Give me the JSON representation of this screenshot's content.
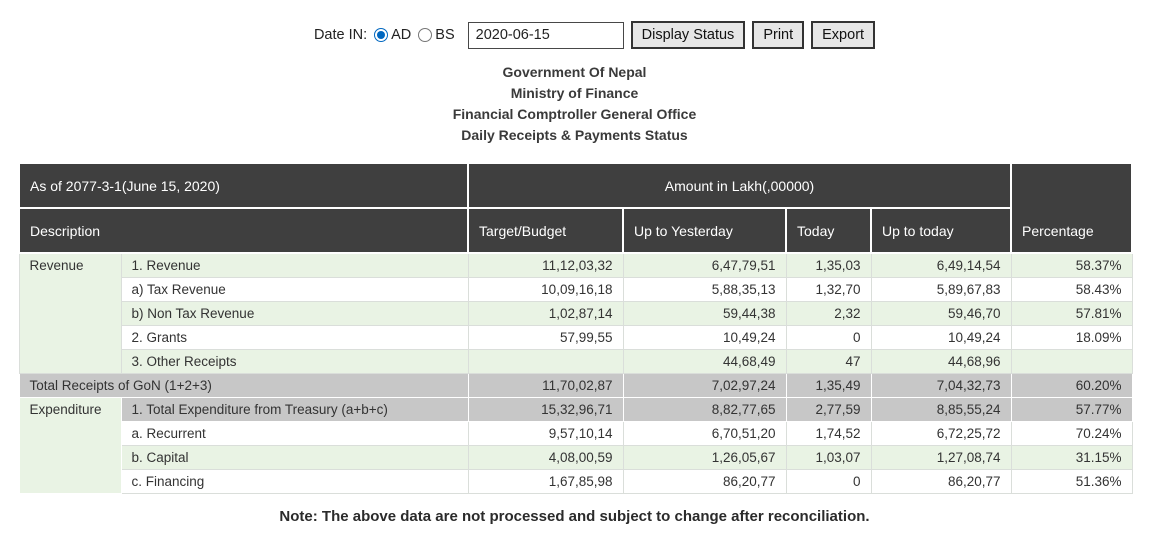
{
  "controls": {
    "date_in_label": "Date IN:",
    "radio_ad_label": "AD",
    "radio_bs_label": "BS",
    "radio_selected": "AD",
    "date_value": "2020-06-15",
    "display_status_label": "Display Status",
    "print_label": "Print",
    "export_label": "Export"
  },
  "titles": {
    "line1": "Government Of Nepal",
    "line2": "Ministry of Finance",
    "line3": "Financial Comptroller General Office",
    "line4": "Daily Receipts & Payments Status"
  },
  "table": {
    "header": {
      "as_of": "As of 2077-3-1(June 15, 2020)",
      "amount_unit": "Amount in Lakh(,00000)",
      "description": "Description",
      "target_budget": "Target/Budget",
      "up_to_yesterday": "Up to Yesterday",
      "today": "Today",
      "up_to_today": "Up to today",
      "percentage": "Percentage"
    },
    "rows": [
      {
        "category": "Revenue",
        "category_rowspan": 5,
        "description": "1. Revenue",
        "bg": "green",
        "values": [
          "11,12,03,32",
          "6,47,79,51",
          "1,35,03",
          "6,49,14,54",
          "58.37%"
        ]
      },
      {
        "description": "a) Tax Revenue",
        "bg": "white",
        "values": [
          "10,09,16,18",
          "5,88,35,13",
          "1,32,70",
          "5,89,67,83",
          "58.43%"
        ]
      },
      {
        "description": "b) Non Tax Revenue",
        "bg": "green",
        "values": [
          "1,02,87,14",
          "59,44,38",
          "2,32",
          "59,46,70",
          "57.81%"
        ]
      },
      {
        "description": "2. Grants",
        "bg": "white",
        "values": [
          "57,99,55",
          "10,49,24",
          "0",
          "10,49,24",
          "18.09%"
        ]
      },
      {
        "description": "3. Other Receipts",
        "bg": "green",
        "values": [
          "",
          "44,68,49",
          "47",
          "44,68,96",
          ""
        ]
      },
      {
        "description": "Total Receipts of GoN (1+2+3)",
        "bg": "gray",
        "full_width": true,
        "values": [
          "11,70,02,87",
          "7,02,97,24",
          "1,35,49",
          "7,04,32,73",
          "60.20%"
        ]
      },
      {
        "category": "Expenditure",
        "category_rowspan": 4,
        "description": "1. Total Expenditure from Treasury (a+b+c)",
        "bg": "gray",
        "values": [
          "15,32,96,71",
          "8,82,77,65",
          "2,77,59",
          "8,85,55,24",
          "57.77%"
        ]
      },
      {
        "description": "a. Recurrent",
        "bg": "white",
        "values": [
          "9,57,10,14",
          "6,70,51,20",
          "1,74,52",
          "6,72,25,72",
          "70.24%"
        ]
      },
      {
        "description": "b. Capital",
        "bg": "green",
        "values": [
          "4,08,00,59",
          "1,26,05,67",
          "1,03,07",
          "1,27,08,74",
          "31.15%"
        ]
      },
      {
        "description": "c. Financing",
        "bg": "white",
        "values": [
          "1,67,85,98",
          "86,20,77",
          "0",
          "86,20,77",
          "51.36%"
        ]
      }
    ]
  },
  "note": "Note: The above data are not processed and subject to change after reconciliation.",
  "colors": {
    "header_bg": "#3f3f3f",
    "row_green": "#e9f3e4",
    "row_gray": "#c7c7c7",
    "accent_blue": "#0067c0"
  }
}
